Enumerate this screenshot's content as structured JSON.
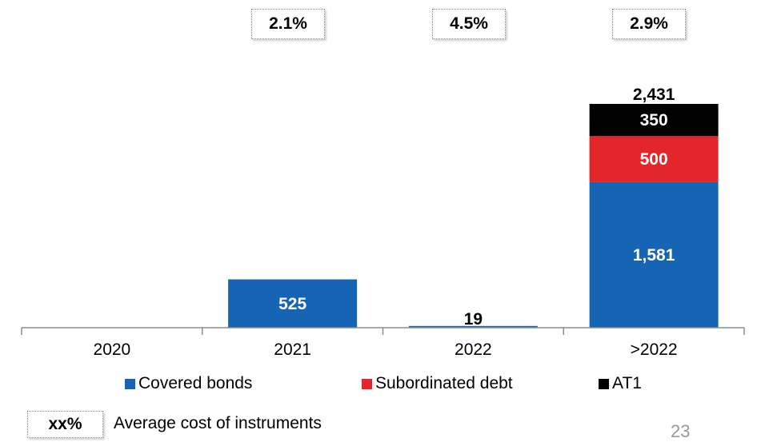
{
  "chart_data": {
    "type": "bar",
    "stacked": true,
    "categories": [
      "2020",
      "2021",
      "2022",
      ">2022"
    ],
    "series": [
      {
        "name": "Covered bonds",
        "values": [
          0,
          525,
          19,
          1581
        ],
        "color": "#1565b4"
      },
      {
        "name": "Subordinated debt",
        "values": [
          0,
          0,
          0,
          500
        ],
        "color": "#e32629"
      },
      {
        "name": "AT1",
        "values": [
          0,
          0,
          0,
          350
        ],
        "color": "#000000"
      }
    ],
    "totals": {
      ">2022": "2,431"
    },
    "data_labels": {
      "2021": [
        "525"
      ],
      "2022": [
        "19"
      ],
      ">2022": [
        "1,581",
        "500",
        "350"
      ]
    },
    "cost_labels": [
      {
        "category": "2021",
        "value": "2.1%"
      },
      {
        "category": "2022",
        "value": "4.5%"
      },
      {
        "category": ">2022",
        "value": "2.9%"
      }
    ],
    "ylim": [
      0,
      2431
    ],
    "grid": false,
    "legend_position": "bottom"
  },
  "legend_items": [
    "Covered bonds",
    "Subordinated debt",
    "AT1"
  ],
  "key_box": {
    "label": "xx%",
    "text": "Average cost of instruments"
  },
  "page_number": "23"
}
